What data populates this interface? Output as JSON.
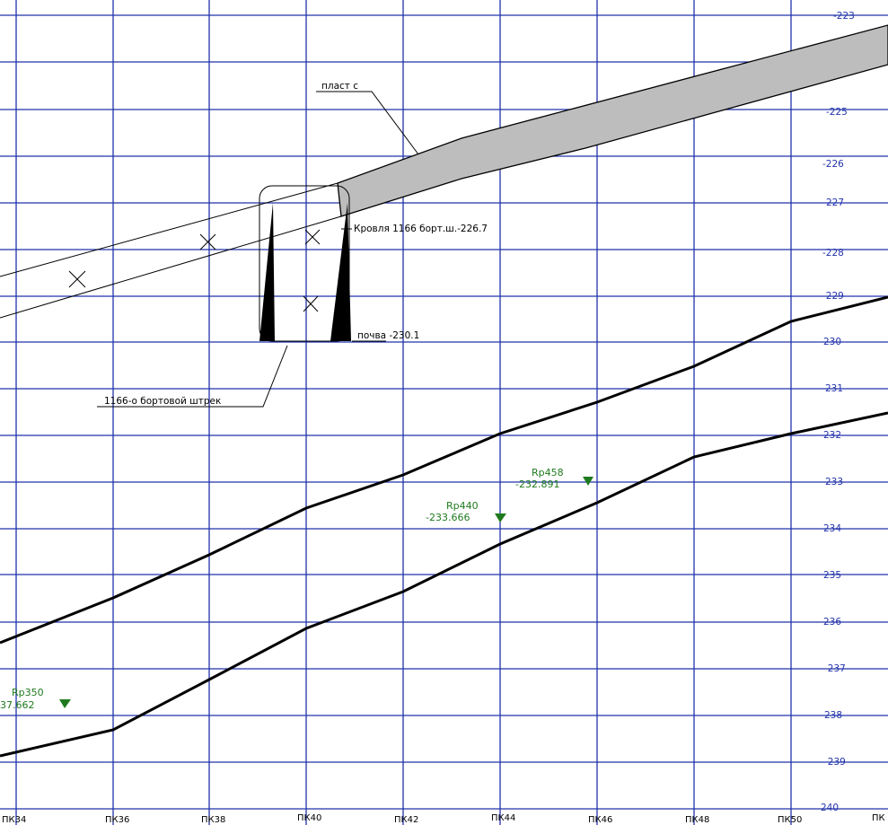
{
  "colors": {
    "grid": "#2233aa",
    "profile": "#000000",
    "seam_fill": "#bdbdbd",
    "benchmark": "#1f7a1f"
  },
  "elevation_labels": [
    "-223",
    "-225",
    "-226",
    "227",
    "-228",
    "-229",
    "230",
    "231",
    "232",
    "233",
    "234",
    "235",
    "236",
    "-237",
    "238",
    "-239",
    "240"
  ],
  "picket_labels": [
    "ПК34",
    "ПК36",
    "ПК38",
    "ПК40",
    "ПК42",
    "ПК44",
    "ПК46",
    "ПК48",
    "ПК50",
    "ПК"
  ],
  "annotations": {
    "seam": "пласт с",
    "roof": "Кровля 1166 борт.ш.-226.7",
    "floor": "почва -230.1",
    "drift": "1166-о бортовой штрек"
  },
  "benchmarks": [
    {
      "name": "Rp458",
      "elevation": "-232.891"
    },
    {
      "name": "Rp440",
      "elevation": "-233.666"
    },
    {
      "name": "Rp350",
      "elevation": "37.662"
    }
  ]
}
